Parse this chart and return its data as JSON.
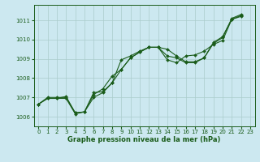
{
  "background_color": "#cce8f0",
  "grid_color": "#aacccc",
  "line_color": "#1a5c1a",
  "xlabel": "Graphe pression niveau de la mer (hPa)",
  "xlim": [
    -0.5,
    23.5
  ],
  "ylim": [
    1005.5,
    1011.8
  ],
  "yticks": [
    1006,
    1007,
    1008,
    1009,
    1010,
    1011
  ],
  "xticks": [
    0,
    1,
    2,
    3,
    4,
    5,
    6,
    7,
    8,
    9,
    10,
    11,
    12,
    13,
    14,
    15,
    16,
    17,
    18,
    19,
    20,
    21,
    22,
    23
  ],
  "series": [
    {
      "x": [
        0,
        1,
        2,
        3,
        4,
        5,
        6,
        7,
        8,
        9,
        10,
        11,
        12,
        13,
        14,
        15,
        16,
        17,
        18,
        19,
        20,
        21,
        22
      ],
      "y": [
        1006.65,
        1006.95,
        1006.95,
        1006.95,
        1006.15,
        1006.25,
        1007.0,
        1007.25,
        1007.75,
        1008.95,
        1009.15,
        1009.4,
        1009.6,
        1009.6,
        1009.15,
        1009.05,
        1008.8,
        1008.8,
        1009.05,
        1009.85,
        1010.15,
        1011.05,
        1011.25
      ]
    },
    {
      "x": [
        0,
        1,
        2,
        3,
        4,
        5,
        6,
        7,
        8,
        9,
        10,
        11,
        12,
        13,
        14,
        15,
        16,
        17,
        18,
        19,
        20,
        21,
        22
      ],
      "y": [
        1006.65,
        1006.95,
        1006.95,
        1007.05,
        1006.2,
        1006.25,
        1007.15,
        1007.45,
        1008.1,
        1008.45,
        1009.05,
        1009.35,
        1009.6,
        1009.6,
        1009.5,
        1009.15,
        1008.85,
        1008.85,
        1009.05,
        1009.8,
        1010.1,
        1011.1,
        1011.3
      ]
    },
    {
      "x": [
        0,
        1,
        2,
        3,
        4,
        5,
        6,
        7,
        8,
        9,
        10,
        11,
        12,
        13,
        14,
        15,
        16,
        17,
        18,
        19,
        20,
        21,
        22
      ],
      "y": [
        1006.65,
        1007.0,
        1007.0,
        1007.0,
        1006.2,
        1006.25,
        1007.25,
        1007.3,
        1007.75,
        1008.45,
        1009.05,
        1009.35,
        1009.6,
        1009.6,
        1008.95,
        1008.8,
        1009.15,
        1009.2,
        1009.4,
        1009.75,
        1009.95,
        1011.05,
        1011.2
      ]
    }
  ],
  "marker": "D",
  "markersize": 2.0,
  "linewidth": 0.8,
  "xlabel_fontsize": 6.0,
  "tick_labelsize": 5.0
}
